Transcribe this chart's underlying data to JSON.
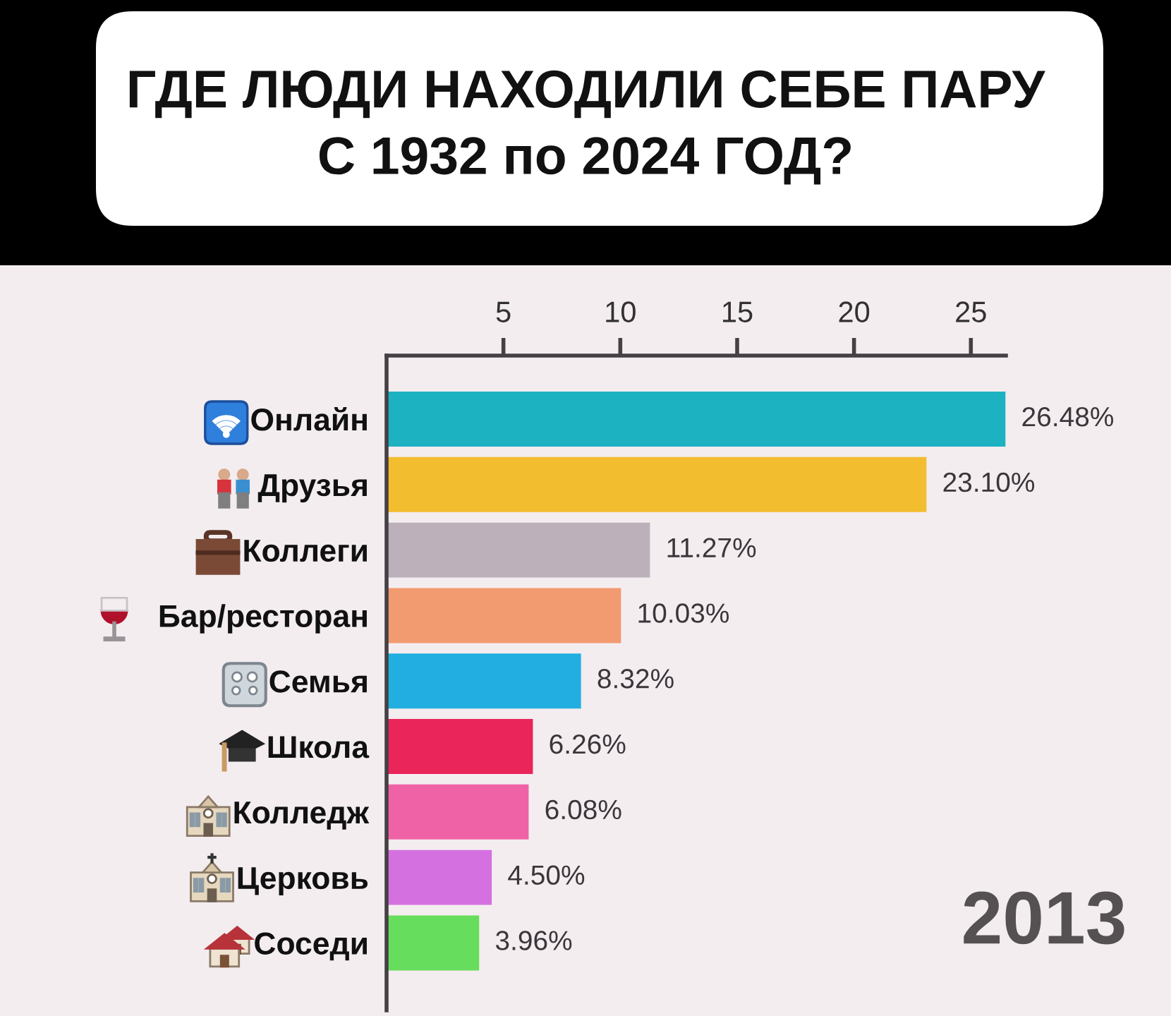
{
  "chart_data": {
    "type": "bar",
    "orientation": "horizontal",
    "title": "ГДЕ ЛЮДИ НАХОДИЛИ СЕБЕ ПАРУ\nС 1932 по 2024 ГОД?",
    "categories": [
      "Онлайн",
      "Друзья",
      "Коллеги",
      "Бар/ресторан",
      "Семья",
      "Школа",
      "Колледж",
      "Церковь",
      "Соседи"
    ],
    "values": [
      26.48,
      23.1,
      11.27,
      10.03,
      8.32,
      6.26,
      6.08,
      4.5,
      3.96
    ],
    "colors": [
      "#1cb2c2",
      "#f2bd2f",
      "#bcb0ba",
      "#f29a70",
      "#22aee0",
      "#e9255a",
      "#ef63a6",
      "#d470e0",
      "#66dd5c"
    ],
    "value_labels": [
      "26.48%",
      "23.10%",
      "11.27%",
      "10.03%",
      "8.32%",
      "6.26%",
      "6.08%",
      "4.50%",
      "3.96%"
    ],
    "xlim": [
      0,
      26.5
    ],
    "xticks": [
      5,
      10,
      15,
      20,
      25
    ],
    "grid": false,
    "annotations": [
      "2013"
    ]
  }
}
